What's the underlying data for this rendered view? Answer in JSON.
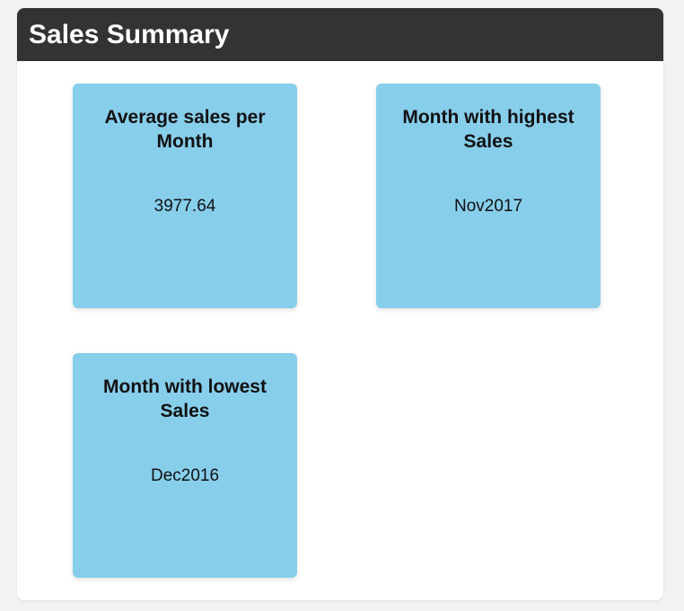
{
  "panel": {
    "title": "Sales Summary"
  },
  "cards": [
    {
      "title": "Average sales per Month",
      "value": "3977.64"
    },
    {
      "title": "Month with highest Sales",
      "value": "Nov2017"
    },
    {
      "title": "Month with lowest Sales",
      "value": "Dec2016"
    }
  ],
  "colors": {
    "header_bg": "#333333",
    "card_bg": "#87ceeb",
    "page_bg": "#f2f2f2"
  }
}
